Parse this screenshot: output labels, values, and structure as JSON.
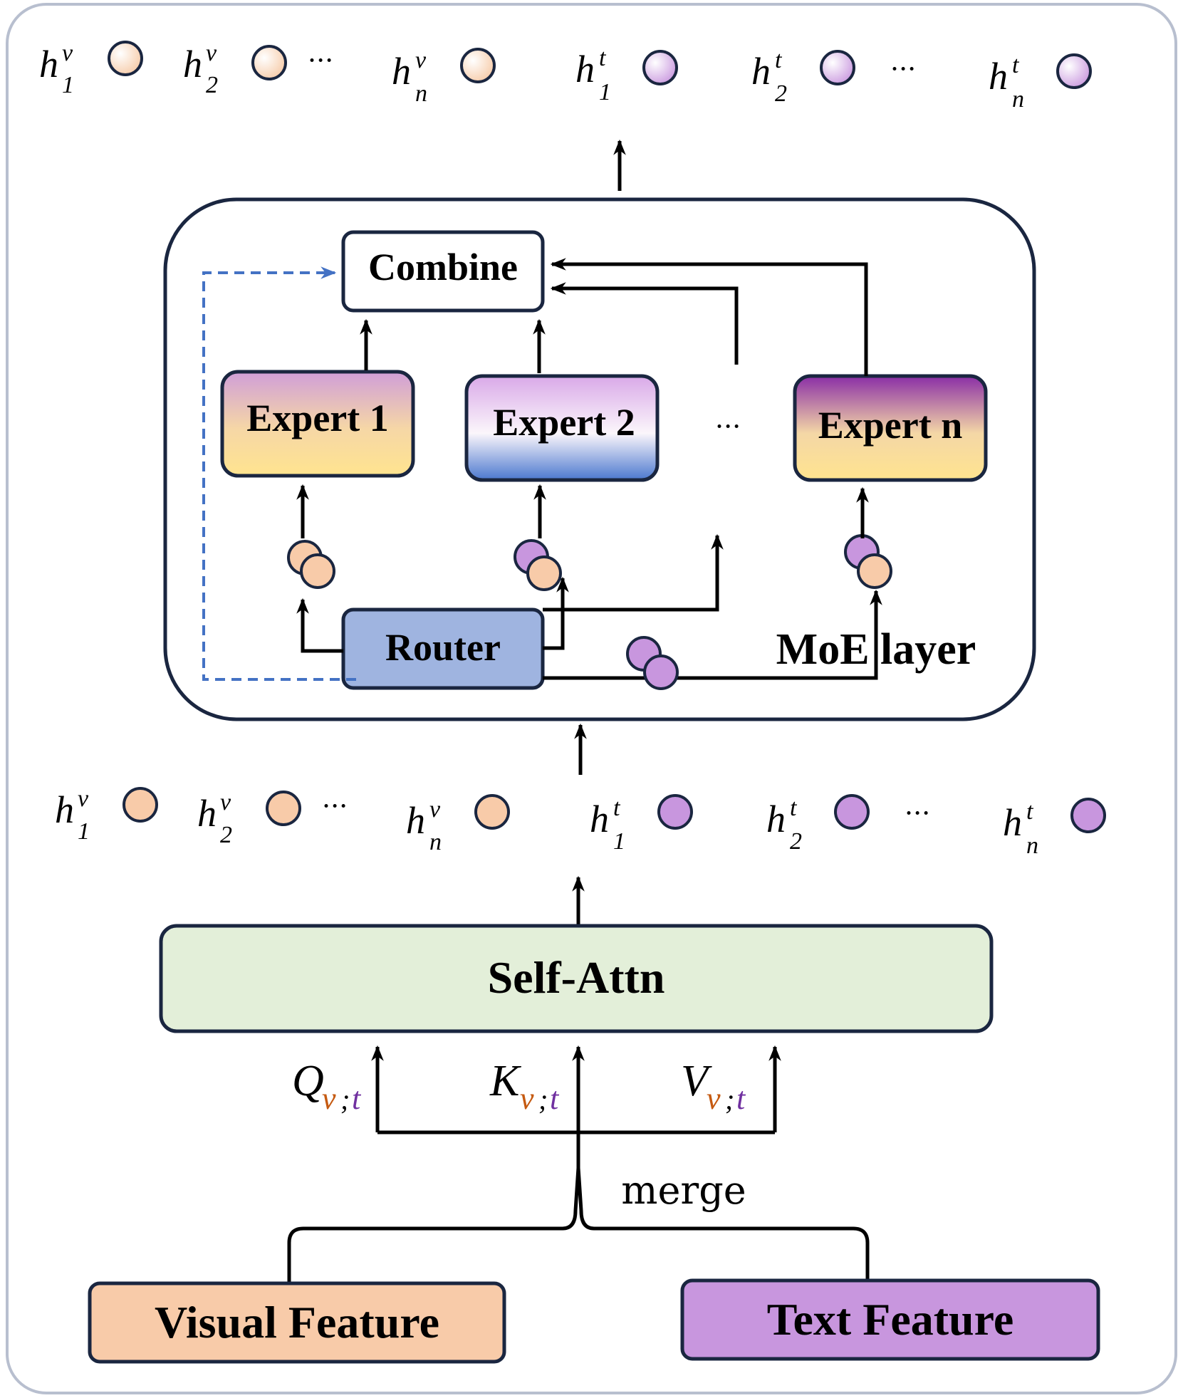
{
  "boxes": {
    "combine": "Combine",
    "expert1": "Expert 1",
    "expert2": "Expert 2",
    "expertn": "Expert n",
    "router": "Router",
    "moe_layer": "MoE layer",
    "self_attn": "Self-Attn",
    "visual_feature": "Visual Feature",
    "text_feature": "Text Feature"
  },
  "labels": {
    "merge": "merge",
    "ellipsis": "···",
    "h": "h",
    "v": "v",
    "t": "t",
    "sub1": "1",
    "sub2": "2",
    "subn": "n",
    "Q": "Q",
    "K": "K",
    "V": "V",
    "qkv_sub_v": "v",
    "qkv_sub_sep": ";",
    "qkv_sub_t": "t"
  },
  "colors": {
    "visual": "#f8cba9",
    "text": "#c896de",
    "self_attn_bg": "#e3efd9",
    "router_bg": "#9fb4e0",
    "border": "#1a2640",
    "frame": "#b8bfcf",
    "dashed": "#4472c4",
    "sub_v": "#c55a11",
    "sub_t": "#7030a0"
  }
}
